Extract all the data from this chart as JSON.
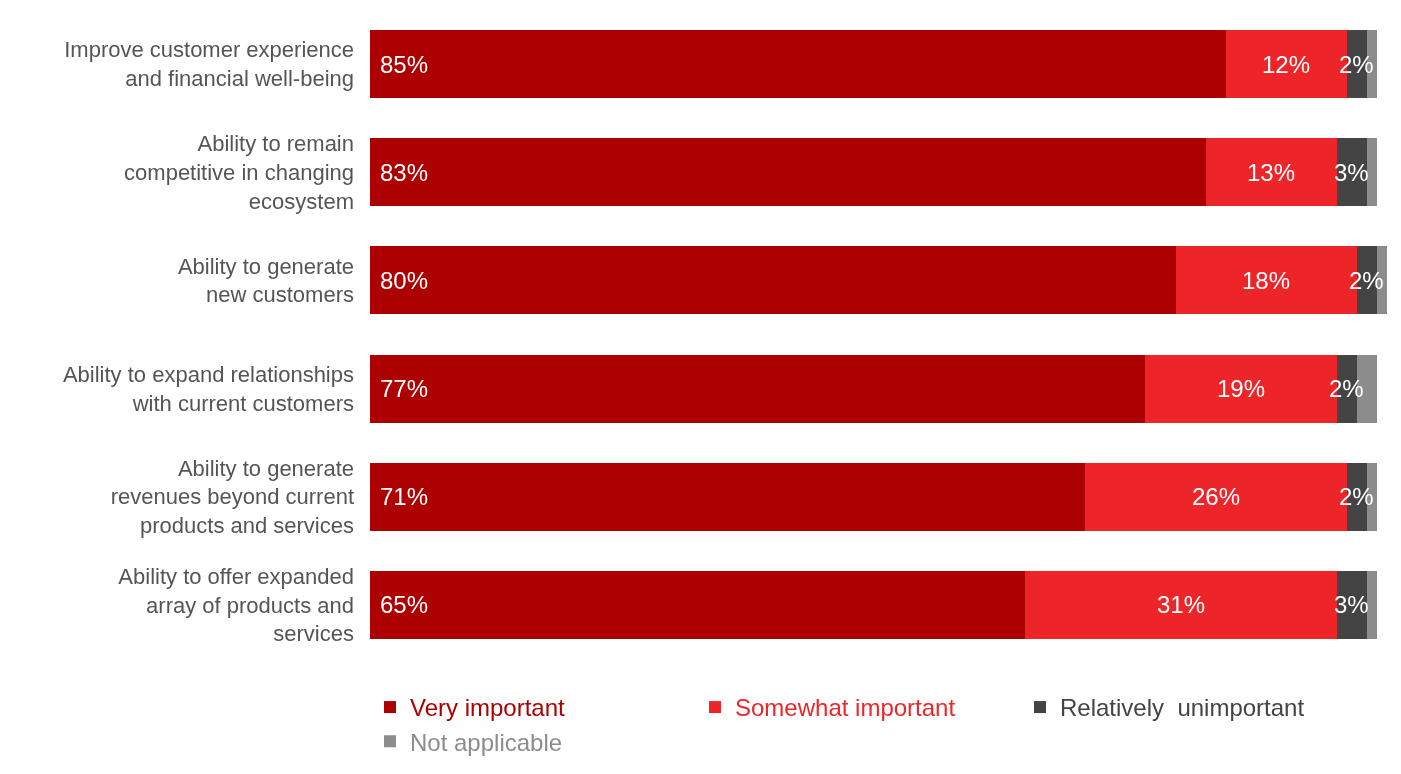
{
  "chart_data": {
    "type": "bar",
    "orientation": "horizontal",
    "stacked": true,
    "legend": "bottom",
    "xlim": [
      0,
      101
    ],
    "categories": [
      "Improve customer experience\nand financial well-being",
      "Ability to remain\ncompetitive in changing\necosystem",
      "Ability to generate\nnew customers",
      "Ability to expand relationships\nwith current customers",
      "Ability to generate\nrevenues beyond current\nproducts and services",
      "Ability to offer expanded\narray of products and\nservices"
    ],
    "series": [
      {
        "name": "Very important",
        "color": "#ad0000",
        "values": [
          85,
          83,
          80,
          77,
          71,
          65
        ],
        "value_labels": [
          "85%",
          "83%",
          "80%",
          "77%",
          "71%",
          "65%"
        ]
      },
      {
        "name": "Somewhat important",
        "color": "#ee2528",
        "values": [
          12,
          13,
          18,
          19,
          26,
          31
        ],
        "value_labels": [
          "12%",
          "13%",
          "18%",
          "19%",
          "26%",
          "31%"
        ]
      },
      {
        "name": "Relatively  unimportant",
        "color": "#444444",
        "values": [
          2,
          3,
          2,
          2,
          2,
          3
        ],
        "value_labels": [
          "2%",
          "3%",
          "2%",
          "2%",
          "2%",
          "3%"
        ]
      },
      {
        "name": "Not applicable",
        "color": "#8c8c8c",
        "values": [
          1,
          1,
          1,
          2,
          1,
          1
        ]
      }
    ]
  }
}
